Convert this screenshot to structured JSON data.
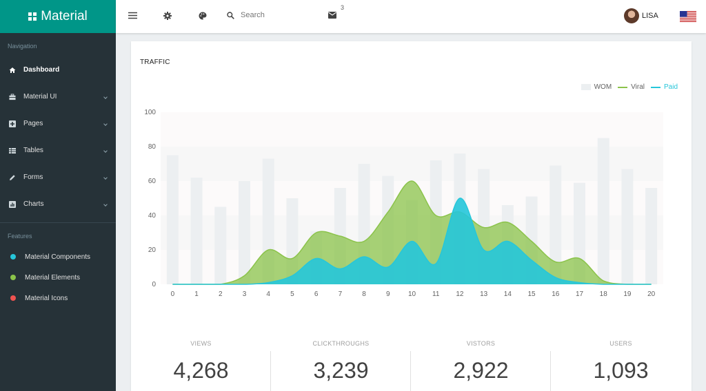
{
  "brand": {
    "name": "Material"
  },
  "sidebar": {
    "navigation_title": "Navigation",
    "items": [
      {
        "label": "Dashboard",
        "icon": "home-icon"
      },
      {
        "label": "Material UI",
        "icon": "briefcase-icon"
      },
      {
        "label": "Pages",
        "icon": "plus-box-icon"
      },
      {
        "label": "Tables",
        "icon": "table-icon"
      },
      {
        "label": "Forms",
        "icon": "pencil-icon"
      },
      {
        "label": "Charts",
        "icon": "chart-box-icon"
      }
    ],
    "features_title": "Features",
    "features": [
      {
        "label": "Material Components",
        "color": "#26c6da"
      },
      {
        "label": "Material Elements",
        "color": "#8bc34a"
      },
      {
        "label": "Material Icons",
        "color": "#ef5350"
      }
    ]
  },
  "topbar": {
    "search_placeholder": "Search",
    "mail_count": "3",
    "user_name": "LISA"
  },
  "card": {
    "title": "TRAFFIC"
  },
  "chart_data": {
    "type": "bar",
    "categories": [
      "0",
      "1",
      "2",
      "3",
      "4",
      "5",
      "6",
      "7",
      "8",
      "9",
      "10",
      "11",
      "12",
      "13",
      "14",
      "15",
      "16",
      "17",
      "18",
      "19",
      "20"
    ],
    "ylim": [
      0,
      100
    ],
    "yticks": [
      "0",
      "20",
      "40",
      "60",
      "80",
      "100"
    ],
    "legend_position": "top-right",
    "series": [
      {
        "name": "WOM",
        "type": "bar",
        "color": "#eceff1",
        "values": [
          75,
          62,
          45,
          60,
          73,
          50,
          31,
          56,
          70,
          63,
          49,
          72,
          76,
          67,
          46,
          51,
          69,
          59,
          85,
          67,
          56
        ]
      },
      {
        "name": "Viral",
        "type": "area",
        "color": "#8bc34a",
        "values": [
          0,
          0,
          0,
          5,
          20,
          15,
          30,
          28,
          25,
          42,
          60,
          40,
          42,
          33,
          36,
          25,
          13,
          15,
          2,
          0,
          0
        ]
      },
      {
        "name": "Paid",
        "type": "area",
        "color": "#26c6da",
        "values": [
          0,
          0,
          0,
          0,
          1,
          5,
          15,
          9,
          16,
          10,
          25,
          12,
          50,
          20,
          25,
          14,
          4,
          1,
          0,
          0,
          0
        ]
      }
    ]
  },
  "stats": [
    {
      "label": "VIEWS",
      "value": "4,268"
    },
    {
      "label": "CLICKTHROUGHS",
      "value": "3,239"
    },
    {
      "label": "VISTORS",
      "value": "2,922"
    },
    {
      "label": "USERS",
      "value": "1,093"
    }
  ]
}
